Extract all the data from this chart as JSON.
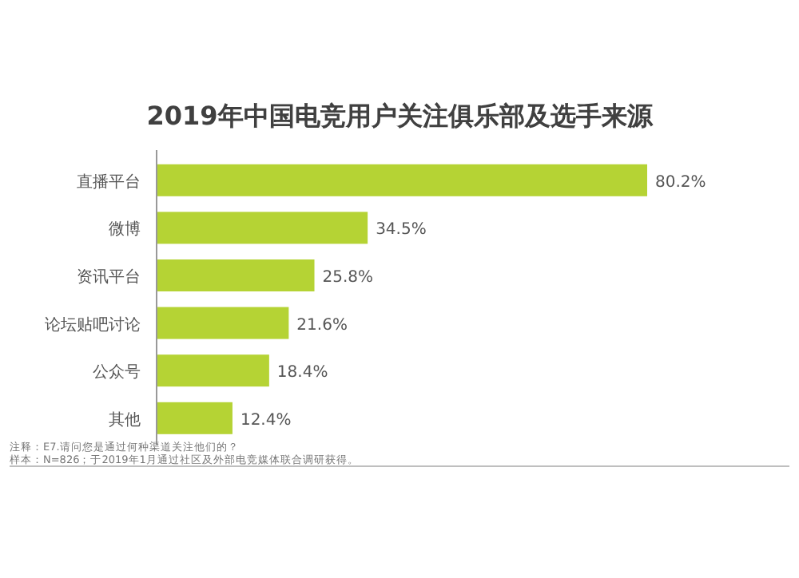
{
  "chart_data": {
    "type": "bar",
    "orientation": "horizontal",
    "title": "2019年中国电竞用户关注俱乐部及选手来源",
    "categories": [
      "直播平台",
      "微博",
      "资讯平台",
      "论坛贴吧讨论",
      "公众号",
      "其他"
    ],
    "values": [
      80.2,
      34.5,
      25.8,
      21.6,
      18.4,
      12.4
    ],
    "value_labels": [
      "80.2%",
      "34.5%",
      "25.8%",
      "21.6%",
      "18.4%",
      "12.4%"
    ],
    "color": "#b5d334",
    "annotations": [
      "注释：E7.请问您是通过何种渠道关注他们的？",
      "样本：N=826；于2019年1月通过社区及外部电竞媒体联合调研获得。"
    ]
  }
}
